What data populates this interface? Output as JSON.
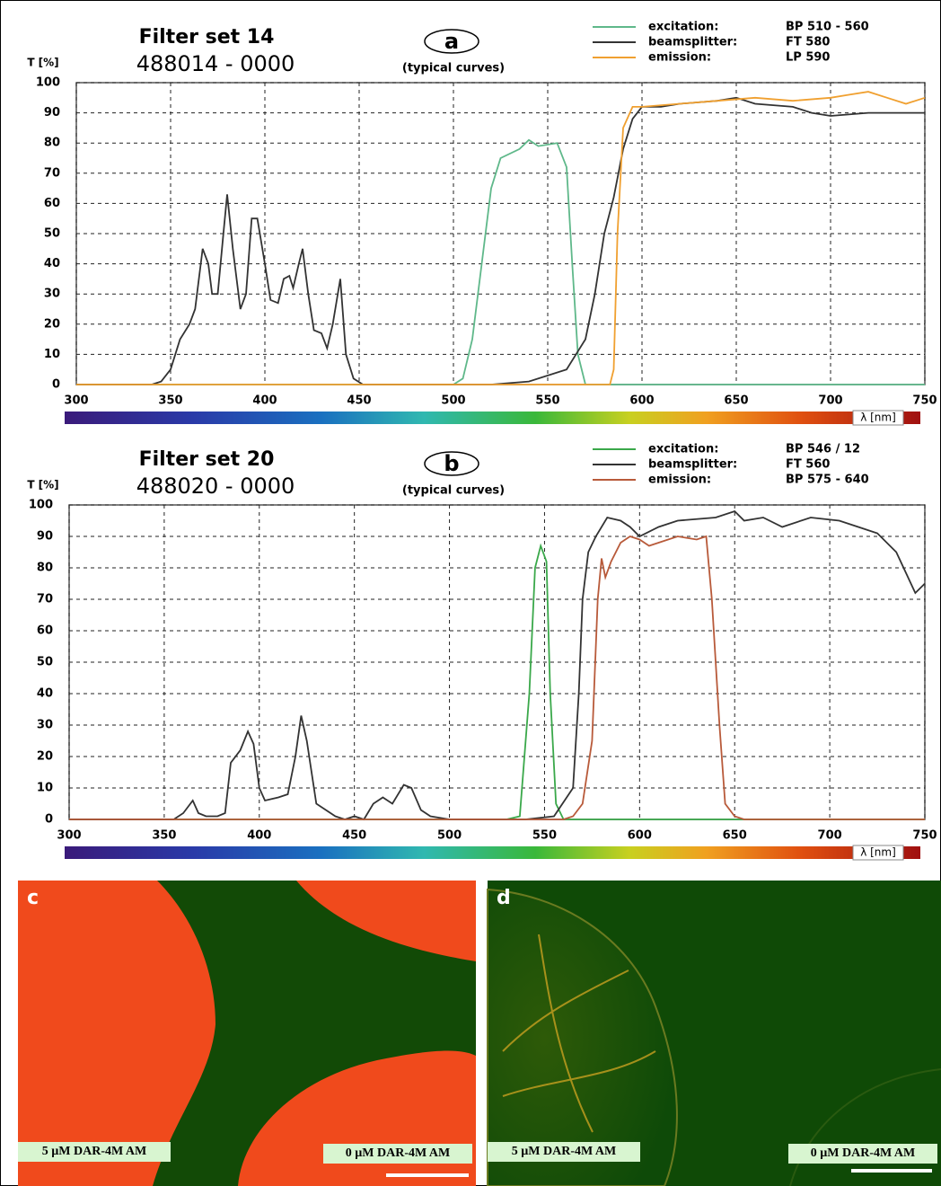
{
  "chart_data": [
    {
      "type": "line",
      "title": "Filter set  14",
      "subtitle": "488014 - 0000",
      "panel_label": "a",
      "note": "(typical curves)",
      "y_label": "T [%]",
      "x_label": "λ [nm]",
      "xlim": [
        300,
        750
      ],
      "ylim": [
        0,
        100
      ],
      "xticks": [
        300,
        350,
        400,
        450,
        500,
        550,
        600,
        650,
        700,
        750
      ],
      "yticks": [
        0,
        10,
        20,
        30,
        40,
        50,
        60,
        70,
        80,
        90,
        100
      ],
      "grid": true,
      "series": [
        {
          "name": "excitation:",
          "filter": "BP 510 - 560",
          "color": "#5fb88a",
          "x": [
            300,
            500,
            505,
            510,
            515,
            520,
            525,
            535,
            540,
            545,
            555,
            560,
            563,
            566,
            570,
            750
          ],
          "values": [
            0,
            0,
            2,
            15,
            40,
            65,
            75,
            78,
            81,
            79,
            80,
            72,
            40,
            10,
            0,
            0
          ]
        },
        {
          "name": "beamsplitter:",
          "filter": "FT 580",
          "color": "#333333",
          "x": [
            300,
            340,
            345,
            350,
            355,
            360,
            363,
            367,
            370,
            372,
            375,
            378,
            380,
            383,
            387,
            390,
            393,
            396,
            400,
            403,
            407,
            410,
            413,
            415,
            418,
            420,
            423,
            426,
            430,
            433,
            436,
            440,
            443,
            447,
            452,
            520,
            540,
            560,
            570,
            575,
            580,
            585,
            590,
            595,
            600,
            610,
            620,
            640,
            650,
            660,
            680,
            690,
            700,
            720,
            750
          ],
          "values": [
            0,
            0,
            1,
            5,
            15,
            20,
            25,
            45,
            40,
            30,
            30,
            50,
            63,
            45,
            25,
            30,
            55,
            55,
            40,
            28,
            27,
            35,
            36,
            32,
            40,
            45,
            30,
            18,
            17,
            12,
            20,
            35,
            10,
            2,
            0,
            0,
            1,
            5,
            15,
            30,
            50,
            62,
            78,
            88,
            92,
            92,
            93,
            94,
            95,
            93,
            92,
            90,
            89,
            90,
            90
          ]
        },
        {
          "name": "emission:",
          "filter": "LP 590",
          "color": "#f0a030",
          "x": [
            300,
            583,
            585,
            587,
            590,
            595,
            600,
            620,
            640,
            660,
            680,
            700,
            710,
            720,
            730,
            740,
            750
          ],
          "values": [
            0,
            0,
            5,
            50,
            85,
            92,
            92,
            93,
            94,
            95,
            94,
            95,
            96,
            97,
            95,
            93,
            95
          ]
        }
      ]
    },
    {
      "type": "line",
      "title": "Filter set  20",
      "subtitle": "488020 - 0000",
      "panel_label": "b",
      "note": "(typical curves)",
      "y_label": "T [%]",
      "x_label": "λ [nm]",
      "xlim": [
        300,
        750
      ],
      "ylim": [
        0,
        100
      ],
      "xticks": [
        300,
        350,
        400,
        450,
        500,
        550,
        600,
        650,
        700,
        750
      ],
      "yticks": [
        0,
        10,
        20,
        30,
        40,
        50,
        60,
        70,
        80,
        90,
        100
      ],
      "grid": true,
      "series": [
        {
          "name": "excitation:",
          "filter": "BP 546 / 12",
          "color": "#3aa84a",
          "x": [
            300,
            530,
            537,
            542,
            545,
            548,
            551,
            553,
            556,
            560,
            750
          ],
          "values": [
            0,
            0,
            1,
            40,
            80,
            87,
            82,
            40,
            5,
            0,
            0
          ]
        },
        {
          "name": "beamsplitter:",
          "filter": "FT 560",
          "color": "#333333",
          "x": [
            300,
            355,
            360,
            365,
            368,
            372,
            378,
            382,
            385,
            390,
            394,
            397,
            400,
            403,
            410,
            415,
            419,
            422,
            425,
            430,
            440,
            445,
            450,
            455,
            460,
            465,
            470,
            476,
            480,
            485,
            490,
            500,
            540,
            555,
            565,
            568,
            570,
            573,
            577,
            583,
            590,
            595,
            600,
            610,
            620,
            640,
            650,
            655,
            665,
            675,
            690,
            705,
            715,
            725,
            735,
            745,
            750
          ],
          "values": [
            0,
            0,
            2,
            6,
            2,
            1,
            1,
            2,
            18,
            22,
            28,
            24,
            10,
            6,
            7,
            8,
            20,
            33,
            25,
            5,
            1,
            0,
            1,
            0,
            5,
            7,
            5,
            11,
            10,
            3,
            1,
            0,
            0,
            1,
            10,
            40,
            70,
            85,
            90,
            96,
            95,
            93,
            90,
            93,
            95,
            96,
            98,
            95,
            96,
            93,
            96,
            95,
            93,
            91,
            85,
            72,
            75
          ]
        },
        {
          "name": "emission:",
          "filter": "BP 575 - 640",
          "color": "#b85a3a",
          "x": [
            300,
            560,
            565,
            570,
            575,
            578,
            580,
            582,
            585,
            590,
            595,
            600,
            605,
            610,
            620,
            630,
            635,
            638,
            642,
            645,
            650,
            655,
            750
          ],
          "values": [
            0,
            0,
            1,
            5,
            25,
            70,
            83,
            77,
            82,
            88,
            90,
            89,
            87,
            88,
            90,
            89,
            90,
            70,
            30,
            5,
            1,
            0,
            0
          ]
        }
      ]
    }
  ],
  "panels": [
    {
      "label": "c",
      "left_text": "5 µM DAR-4M AM",
      "right_text": "0 µM DAR-4M AM"
    },
    {
      "label": "d",
      "left_text": "5 µM DAR-4M AM",
      "right_text": "0 µM DAR-4M AM"
    }
  ]
}
